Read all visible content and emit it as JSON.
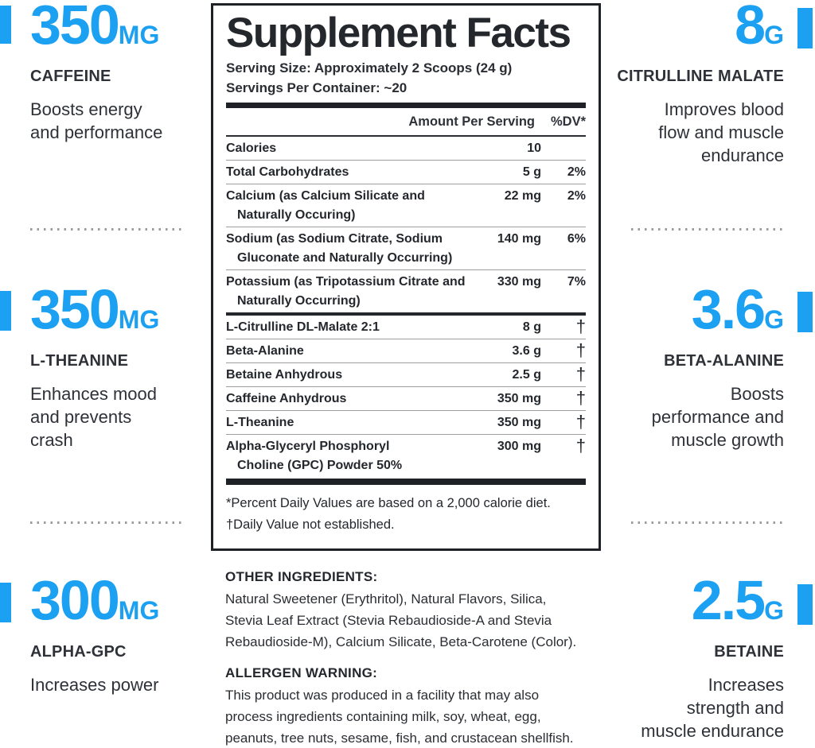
{
  "colors": {
    "accent_blue": "#1ca0f2",
    "text_dark": "#2e3137",
    "panel_black": "#1e2126",
    "divider_gray": "#9b9b9b"
  },
  "left_column": {
    "stats": [
      {
        "value": "350",
        "unit": "MG",
        "name": "CAFFEINE",
        "description": "Boosts energy\nand performance"
      },
      {
        "value": "350",
        "unit": "MG",
        "name": "L-THEANINE",
        "description": "Enhances mood\nand prevents\ncrash"
      },
      {
        "value": "300",
        "unit": "MG",
        "name": "ALPHA-GPC",
        "description": "Increases power"
      }
    ]
  },
  "right_column": {
    "stats": [
      {
        "value": "8",
        "unit": "G",
        "name": "CITRULLINE MALATE",
        "description": "Improves blood\nflow and muscle\nendurance"
      },
      {
        "value": "3.6",
        "unit": "G",
        "name": "BETA-ALANINE",
        "description": "Boosts\nperformance and\nmuscle growth"
      },
      {
        "value": "2.5",
        "unit": "G",
        "name": "BETAINE",
        "description": "Increases\nstrength and\nmuscle endurance"
      }
    ]
  },
  "panel": {
    "title": "Supplement Facts",
    "serving_size": "Serving Size: Approximately 2 Scoops (24 g)",
    "servings_per_container": "Servings Per Container: ~20",
    "columns": {
      "amount": "Amount Per Serving",
      "dv": "%DV*"
    },
    "rows": [
      {
        "name": "Calories",
        "amount": "10",
        "dv": ""
      },
      {
        "name": "Total Carbohydrates",
        "amount": "5 g",
        "dv": "2%"
      },
      {
        "name": "Calcium (as Calcium Silicate and\nNaturally Occuring)",
        "amount": "22 mg",
        "dv": "2%"
      },
      {
        "name": "Sodium (as Sodium Citrate, Sodium\nGluconate and Naturally Occurring)",
        "amount": "140 mg",
        "dv": "6%"
      },
      {
        "name": "Potassium (as Tripotassium Citrate and\nNaturally Occurring)",
        "amount": "330 mg",
        "dv": "7%"
      },
      {
        "name": "L-Citrulline DL-Malate 2:1",
        "amount": "8 g",
        "dv": "†"
      },
      {
        "name": "Beta-Alanine",
        "amount": "3.6 g",
        "dv": "†"
      },
      {
        "name": "Betaine Anhydrous",
        "amount": "2.5 g",
        "dv": "†"
      },
      {
        "name": "Caffeine Anhydrous",
        "amount": "350 mg",
        "dv": "†"
      },
      {
        "name": "L-Theanine",
        "amount": "350 mg",
        "dv": "†"
      },
      {
        "name": "Alpha-Glyceryl Phosphoryl\nCholine (GPC) Powder 50%",
        "amount": "300 mg",
        "dv": "†"
      }
    ],
    "footnotes": [
      "*Percent Daily Values are based on a 2,000 calorie diet.",
      "†Daily Value not established."
    ]
  },
  "other_ingredients": {
    "heading": "OTHER INGREDIENTS:",
    "body": "Natural Sweetener (Erythritol), Natural Flavors, Silica,\nStevia Leaf Extract (Stevia Rebaudioside-A and Stevia\nRebaudioside-M), Calcium Silicate, Beta-Carotene (Color)."
  },
  "allergen_warning": {
    "heading": "ALLERGEN WARNING:",
    "body": "This product was produced in a facility that may also\nprocess ingredients containing milk, soy, wheat, egg,\npeanuts, tree nuts, sesame, fish, and crustacean shellfish."
  }
}
